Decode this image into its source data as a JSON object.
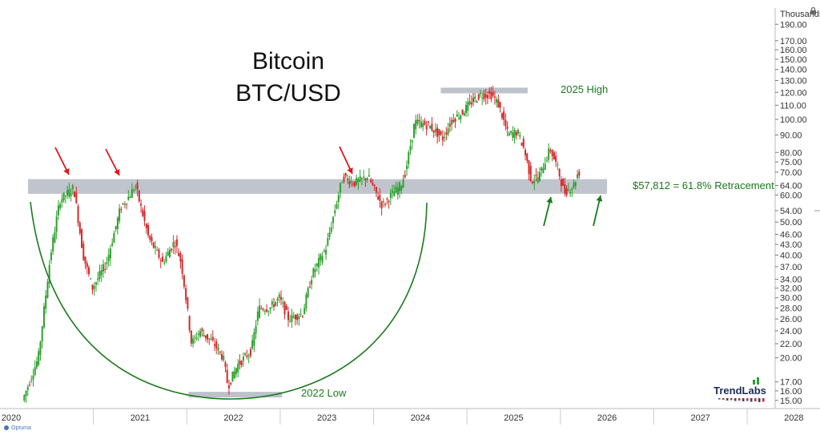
{
  "chart_data": {
    "type": "candlestick",
    "title": "Bitcoin",
    "subtitle": "BTC/USD",
    "ylabel_unit": "Thousands",
    "y_scale": "log",
    "ylim": [
      14.2,
      212
    ],
    "xlim": [
      2020.0,
      2028.3
    ],
    "y_ticks": [
      15,
      16,
      17,
      20,
      22,
      24,
      26,
      28,
      30,
      32,
      34,
      37,
      40,
      43,
      46,
      50,
      54,
      60,
      64,
      70,
      75,
      80,
      90,
      100,
      110,
      120,
      130,
      140,
      150,
      160,
      170,
      190
    ],
    "y_tick_labels": [
      "15.00",
      "16.00",
      "17.00",
      "20.00",
      "22.00",
      "24.00",
      "26.00",
      "28.00",
      "30.00",
      "32.00",
      "34.00",
      "37.00",
      "40.00",
      "43.00",
      "46.00",
      "50.00",
      "54.00",
      "60.00",
      "64.00",
      "70.00",
      "75.00",
      "80.00",
      "90.00",
      "100.00",
      "110.00",
      "120.00",
      "130.00",
      "140.00",
      "150.00",
      "160.00",
      "170.00",
      "190.00"
    ],
    "x_ticks": [
      "2020",
      "2021",
      "2022",
      "2023",
      "2024",
      "2025",
      "2026",
      "2027",
      "2028"
    ],
    "grid": false,
    "colors": {
      "up": "#2ca02c",
      "down": "#d62728",
      "band": "#b5bac4",
      "arc": "#1a7a1a",
      "arrow_red": "#e0151b",
      "arrow_green": "#1a7a1a",
      "annotation": "#1a7a1a"
    },
    "price_path": [
      [
        2020.25,
        15.0
      ],
      [
        2020.42,
        20.0
      ],
      [
        2020.55,
        40.0
      ],
      [
        2020.65,
        58.0
      ],
      [
        2020.8,
        63.0
      ],
      [
        2020.9,
        40.0
      ],
      [
        2021.0,
        32.0
      ],
      [
        2021.15,
        38.0
      ],
      [
        2021.3,
        55.0
      ],
      [
        2021.4,
        60.0
      ],
      [
        2021.46,
        64.0
      ],
      [
        2021.6,
        45.0
      ],
      [
        2021.75,
        38.0
      ],
      [
        2021.88,
        44.0
      ],
      [
        2021.95,
        38.0
      ],
      [
        2022.0,
        30.0
      ],
      [
        2022.06,
        22.0
      ],
      [
        2022.15,
        24.0
      ],
      [
        2022.3,
        22.0
      ],
      [
        2022.4,
        20.0
      ],
      [
        2022.45,
        16.5
      ],
      [
        2022.55,
        19.0
      ],
      [
        2022.7,
        21.0
      ],
      [
        2022.78,
        28.0
      ],
      [
        2022.9,
        28.0
      ],
      [
        2023.0,
        30.0
      ],
      [
        2023.1,
        26.0
      ],
      [
        2023.25,
        27.0
      ],
      [
        2023.35,
        35.0
      ],
      [
        2023.5,
        42.0
      ],
      [
        2023.6,
        55.0
      ],
      [
        2023.68,
        68.0
      ],
      [
        2023.8,
        65.0
      ],
      [
        2023.95,
        68.0
      ],
      [
        2024.1,
        56.0
      ],
      [
        2024.2,
        60.0
      ],
      [
        2024.3,
        64.0
      ],
      [
        2024.35,
        70.0
      ],
      [
        2024.45,
        98.0
      ],
      [
        2024.6,
        96.0
      ],
      [
        2024.75,
        88.0
      ],
      [
        2024.85,
        100.0
      ],
      [
        2024.95,
        104.0
      ],
      [
        2025.05,
        112.0
      ],
      [
        2025.15,
        118.0
      ],
      [
        2025.28,
        118.0
      ],
      [
        2025.35,
        110.0
      ],
      [
        2025.45,
        90.0
      ],
      [
        2025.55,
        92.0
      ],
      [
        2025.62,
        82.0
      ],
      [
        2025.7,
        66.0
      ],
      [
        2025.78,
        68.0
      ],
      [
        2025.9,
        82.0
      ],
      [
        2025.98,
        72.0
      ],
      [
        2026.05,
        61.0
      ],
      [
        2026.15,
        64.0
      ],
      [
        2026.2,
        70.0
      ]
    ],
    "annotations": {
      "retracement_label": "$57,812 = 61.8% Retracement",
      "high_label": "2025 High",
      "low_label": "2022 Low",
      "retracement_band": [
        60.5,
        66.8
      ],
      "high_level": 121.5,
      "low_level": 15.6
    },
    "logo": "TrendLabs",
    "footer_brand": "Optuma"
  }
}
